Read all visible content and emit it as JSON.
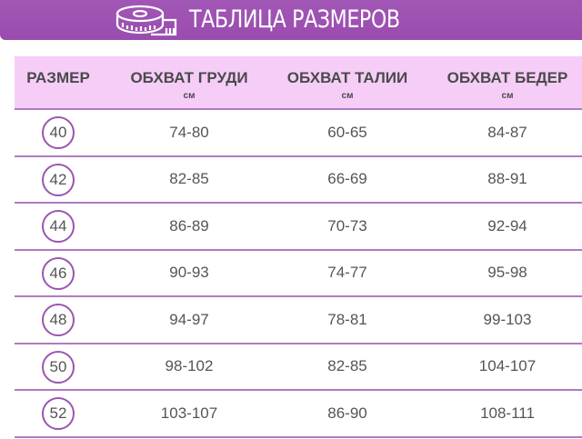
{
  "header": {
    "title": "ТАБЛИЦА РАЗМЕРОВ",
    "icon": "measuring-tape-icon",
    "color": "#9b4fb0"
  },
  "table": {
    "columns": [
      {
        "label": "РАЗМЕР",
        "unit": ""
      },
      {
        "label": "ОБХВАТ ГРУДИ",
        "unit": "см"
      },
      {
        "label": "ОБХВАТ ТАЛИИ",
        "unit": "см"
      },
      {
        "label": "ОБХВАТ БЕДЕР",
        "unit": "см"
      }
    ],
    "rows": [
      [
        "40",
        "74-80",
        "60-65",
        "84-87"
      ],
      [
        "42",
        "82-85",
        "66-69",
        "88-91"
      ],
      [
        "44",
        "86-89",
        "70-73",
        "92-94"
      ],
      [
        "46",
        "90-93",
        "74-77",
        "95-98"
      ],
      [
        "48",
        "94-97",
        "78-81",
        "99-103"
      ],
      [
        "50",
        "98-102",
        "82-85",
        "104-107"
      ],
      [
        "52",
        "103-107",
        "86-90",
        "108-111"
      ]
    ],
    "header_bg": "#f5cdf7",
    "accent": "#9b55b0"
  }
}
